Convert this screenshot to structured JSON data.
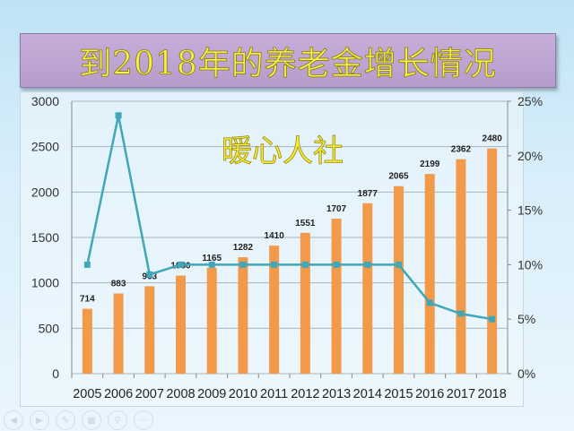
{
  "title": "到2018年的养老金增长情况",
  "chart_data": {
    "type": "bar+line",
    "title": "到2018年的养老金增长情况",
    "watermark": "暖心人社",
    "categories": [
      "2005",
      "2006",
      "2007",
      "2008",
      "2009",
      "2010",
      "2011",
      "2012",
      "2013",
      "2014",
      "2015",
      "2016",
      "2017",
      "2018"
    ],
    "series": [
      {
        "type": "bar",
        "axis": "left",
        "color": "#f39a4a",
        "values": [
          714,
          883,
          963,
          1080,
          1165,
          1282,
          1410,
          1551,
          1707,
          1877,
          2065,
          2199,
          2362,
          2480
        ]
      },
      {
        "type": "line",
        "axis": "right",
        "color": "#3fa7b8",
        "values": [
          10,
          23.7,
          9.1,
          10,
          10,
          10,
          10,
          10,
          10,
          10,
          10,
          6.5,
          5.5,
          5
        ]
      }
    ],
    "left_axis": {
      "ylim": [
        0,
        3000
      ],
      "ticks": [
        "0",
        "500",
        "1000",
        "1500",
        "2000",
        "2500",
        "3000"
      ]
    },
    "right_axis": {
      "ylim": [
        0,
        25
      ],
      "ticks": [
        "0%",
        "5%",
        "10%",
        "15%",
        "20%",
        "25%"
      ]
    },
    "grid": true
  },
  "toolbar": {
    "icons": [
      "prev-icon",
      "next-icon",
      "pen-icon",
      "slides-icon",
      "zoom-icon",
      "more-icon"
    ]
  }
}
